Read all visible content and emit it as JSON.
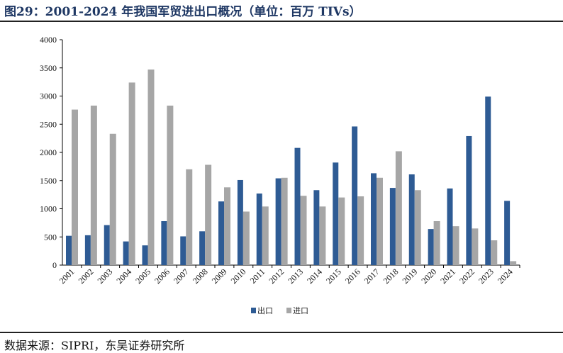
{
  "title": "图29：2001-2024 年我国军贸进出口概况（单位：百万 TIVs）",
  "source": "数据来源：SIPRI，东吴证券研究所",
  "chart_data": {
    "type": "bar",
    "title": "图29：2001-2024 年我国军贸进出口概况（单位：百万 TIVs）",
    "xlabel": "",
    "ylabel": "",
    "ylim": [
      0,
      4000
    ],
    "yticks": [
      0,
      500,
      1000,
      1500,
      2000,
      2500,
      3000,
      3500,
      4000
    ],
    "grid": false,
    "legend": "bottom",
    "categories": [
      "2001",
      "2002",
      "2003",
      "2004",
      "2005",
      "2006",
      "2007",
      "2008",
      "2009",
      "2010",
      "2011",
      "2012",
      "2013",
      "2014",
      "2015",
      "2016",
      "2017",
      "2018",
      "2019",
      "2020",
      "2021",
      "2022",
      "2023",
      "2024"
    ],
    "series": [
      {
        "name": "出口",
        "color": "#2e5b94",
        "values": [
          520,
          530,
          710,
          420,
          350,
          780,
          510,
          600,
          1130,
          1510,
          1270,
          1540,
          2080,
          1330,
          1820,
          2460,
          1630,
          1370,
          1610,
          640,
          1360,
          2290,
          2990,
          1140
        ]
      },
      {
        "name": "进口",
        "color": "#a6a6a6",
        "values": [
          2760,
          2830,
          2330,
          3240,
          3470,
          2830,
          1700,
          1780,
          1380,
          950,
          1040,
          1550,
          1230,
          1040,
          1200,
          1220,
          1550,
          2020,
          1330,
          780,
          690,
          650,
          440,
          70
        ]
      }
    ]
  }
}
